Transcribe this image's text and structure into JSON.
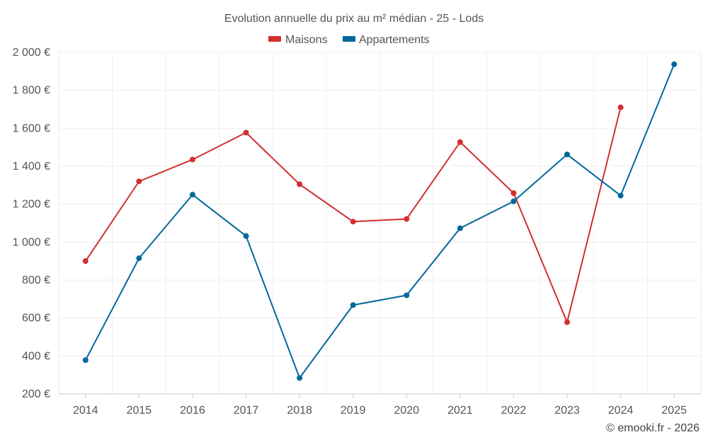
{
  "chart_data": {
    "type": "line",
    "title": "Evolution annuelle du prix au m² médian - 25 - Lods",
    "categories": [
      "2014",
      "2015",
      "2016",
      "2017",
      "2018",
      "2019",
      "2020",
      "2021",
      "2022",
      "2023",
      "2024",
      "2025"
    ],
    "series": [
      {
        "name": "Maisons",
        "color": "#d32f2f",
        "values": [
          900,
          1320,
          1435,
          1577,
          1305,
          1108,
          1122,
          1527,
          1258,
          578,
          1710,
          null
        ]
      },
      {
        "name": "Appartements",
        "color": "#01689b",
        "values": [
          378,
          915,
          1250,
          1032,
          284,
          668,
          720,
          1073,
          1215,
          1462,
          1245,
          1937
        ]
      }
    ],
    "ylim": [
      200,
      2000
    ],
    "yticks": [
      200,
      400,
      600,
      800,
      1000,
      1200,
      1400,
      1600,
      1800,
      2000
    ],
    "ytick_labels": [
      "200 €",
      "400 €",
      "600 €",
      "800 €",
      "1 000 €",
      "1 200 €",
      "1 400 €",
      "1 600 €",
      "1 800 €",
      "2 000 €"
    ],
    "xlabel": "",
    "ylabel": "",
    "grid": true,
    "legend_position": "top-center",
    "credit": "© emooki.fr - 2026"
  }
}
